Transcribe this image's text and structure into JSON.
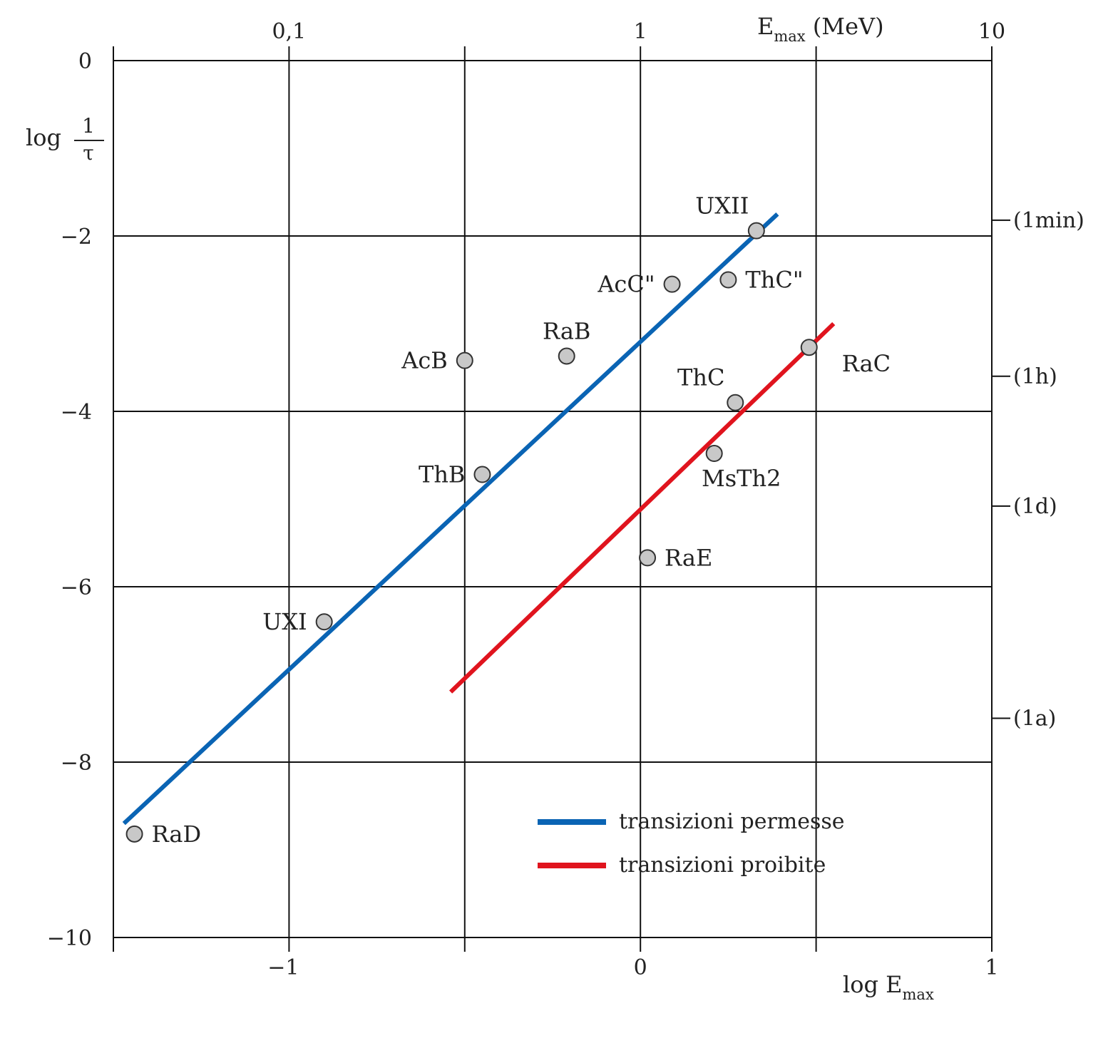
{
  "chart_data": {
    "type": "scatter",
    "bottom_axis": {
      "title_main": "log E",
      "title_sub": "max",
      "ticks": [
        {
          "value": -1.5,
          "label": ""
        },
        {
          "value": -1,
          "label": "−1"
        },
        {
          "value": -0.5,
          "label": ""
        },
        {
          "value": 0,
          "label": "0"
        },
        {
          "value": 0.5,
          "label": ""
        },
        {
          "value": 1,
          "label": "1"
        }
      ],
      "range": [
        -1.5,
        1
      ]
    },
    "top_axis": {
      "title_main": "E",
      "title_sub": "max",
      "title_unit": " (MeV)",
      "ticks": [
        {
          "value": 0.1,
          "label": "0,1"
        },
        {
          "value": 1,
          "label": "1"
        },
        {
          "value": 10,
          "label": "10"
        }
      ],
      "scale": "log"
    },
    "left_axis": {
      "title": "log",
      "fraction_numerator": "1",
      "fraction_denominator": "τ",
      "ticks": [
        {
          "value": 0,
          "label": "0"
        },
        {
          "value": -2,
          "label": "−2"
        },
        {
          "value": -4,
          "label": "−4"
        },
        {
          "value": -6,
          "label": "−6"
        },
        {
          "value": -8,
          "label": "−8"
        },
        {
          "value": -10,
          "label": "−10"
        }
      ],
      "range": [
        -10,
        0
      ]
    },
    "right_axis": {
      "ticks": [
        {
          "value": -1.82,
          "label": "(1min)"
        },
        {
          "value": -3.6,
          "label": "(1h)"
        },
        {
          "value": -5.08,
          "label": "(1d)"
        },
        {
          "value": -7.5,
          "label": "(1a)"
        }
      ]
    },
    "grid": {
      "x": [
        -1.5,
        -1,
        -0.5,
        0,
        0.5,
        1
      ],
      "y": [
        0,
        -2,
        -4,
        -6,
        -8,
        -10
      ]
    },
    "points": [
      {
        "name": "RaD",
        "x": -1.44,
        "y": -8.82,
        "pos": "right"
      },
      {
        "name": "UXI",
        "x": -0.9,
        "y": -6.4,
        "pos": "left"
      },
      {
        "name": "ThB",
        "x": -0.45,
        "y": -4.72,
        "pos": "left"
      },
      {
        "name": "AcB",
        "x": -0.5,
        "y": -3.42,
        "pos": "left"
      },
      {
        "name": "RaB",
        "x": -0.21,
        "y": -3.37,
        "pos": "above"
      },
      {
        "name": "AcC\"",
        "x": 0.09,
        "y": -2.55,
        "pos": "left"
      },
      {
        "name": "ThC\"",
        "x": 0.25,
        "y": -2.5,
        "pos": "right"
      },
      {
        "name": "UXII",
        "x": 0.33,
        "y": -1.94,
        "pos": "above-left"
      },
      {
        "name": "ThC",
        "x": 0.27,
        "y": -3.9,
        "pos": "above-left"
      },
      {
        "name": "MsTh2",
        "x": 0.21,
        "y": -4.48,
        "pos": "below"
      },
      {
        "name": "RaC",
        "x": 0.48,
        "y": -3.27,
        "pos": "right-far"
      },
      {
        "name": "RaE",
        "x": 0.02,
        "y": -5.67,
        "pos": "right"
      }
    ],
    "series": [
      {
        "name": "transizioni permesse",
        "color": "#0a64b4",
        "x": [
          -1.47,
          0.39
        ],
        "y": [
          -8.7,
          -1.75
        ]
      },
      {
        "name": "transizioni proibite",
        "color": "#e0141e",
        "x": [
          -0.54,
          0.55
        ],
        "y": [
          -7.2,
          -3.0
        ]
      }
    ],
    "legend_position": "bottom-right"
  }
}
